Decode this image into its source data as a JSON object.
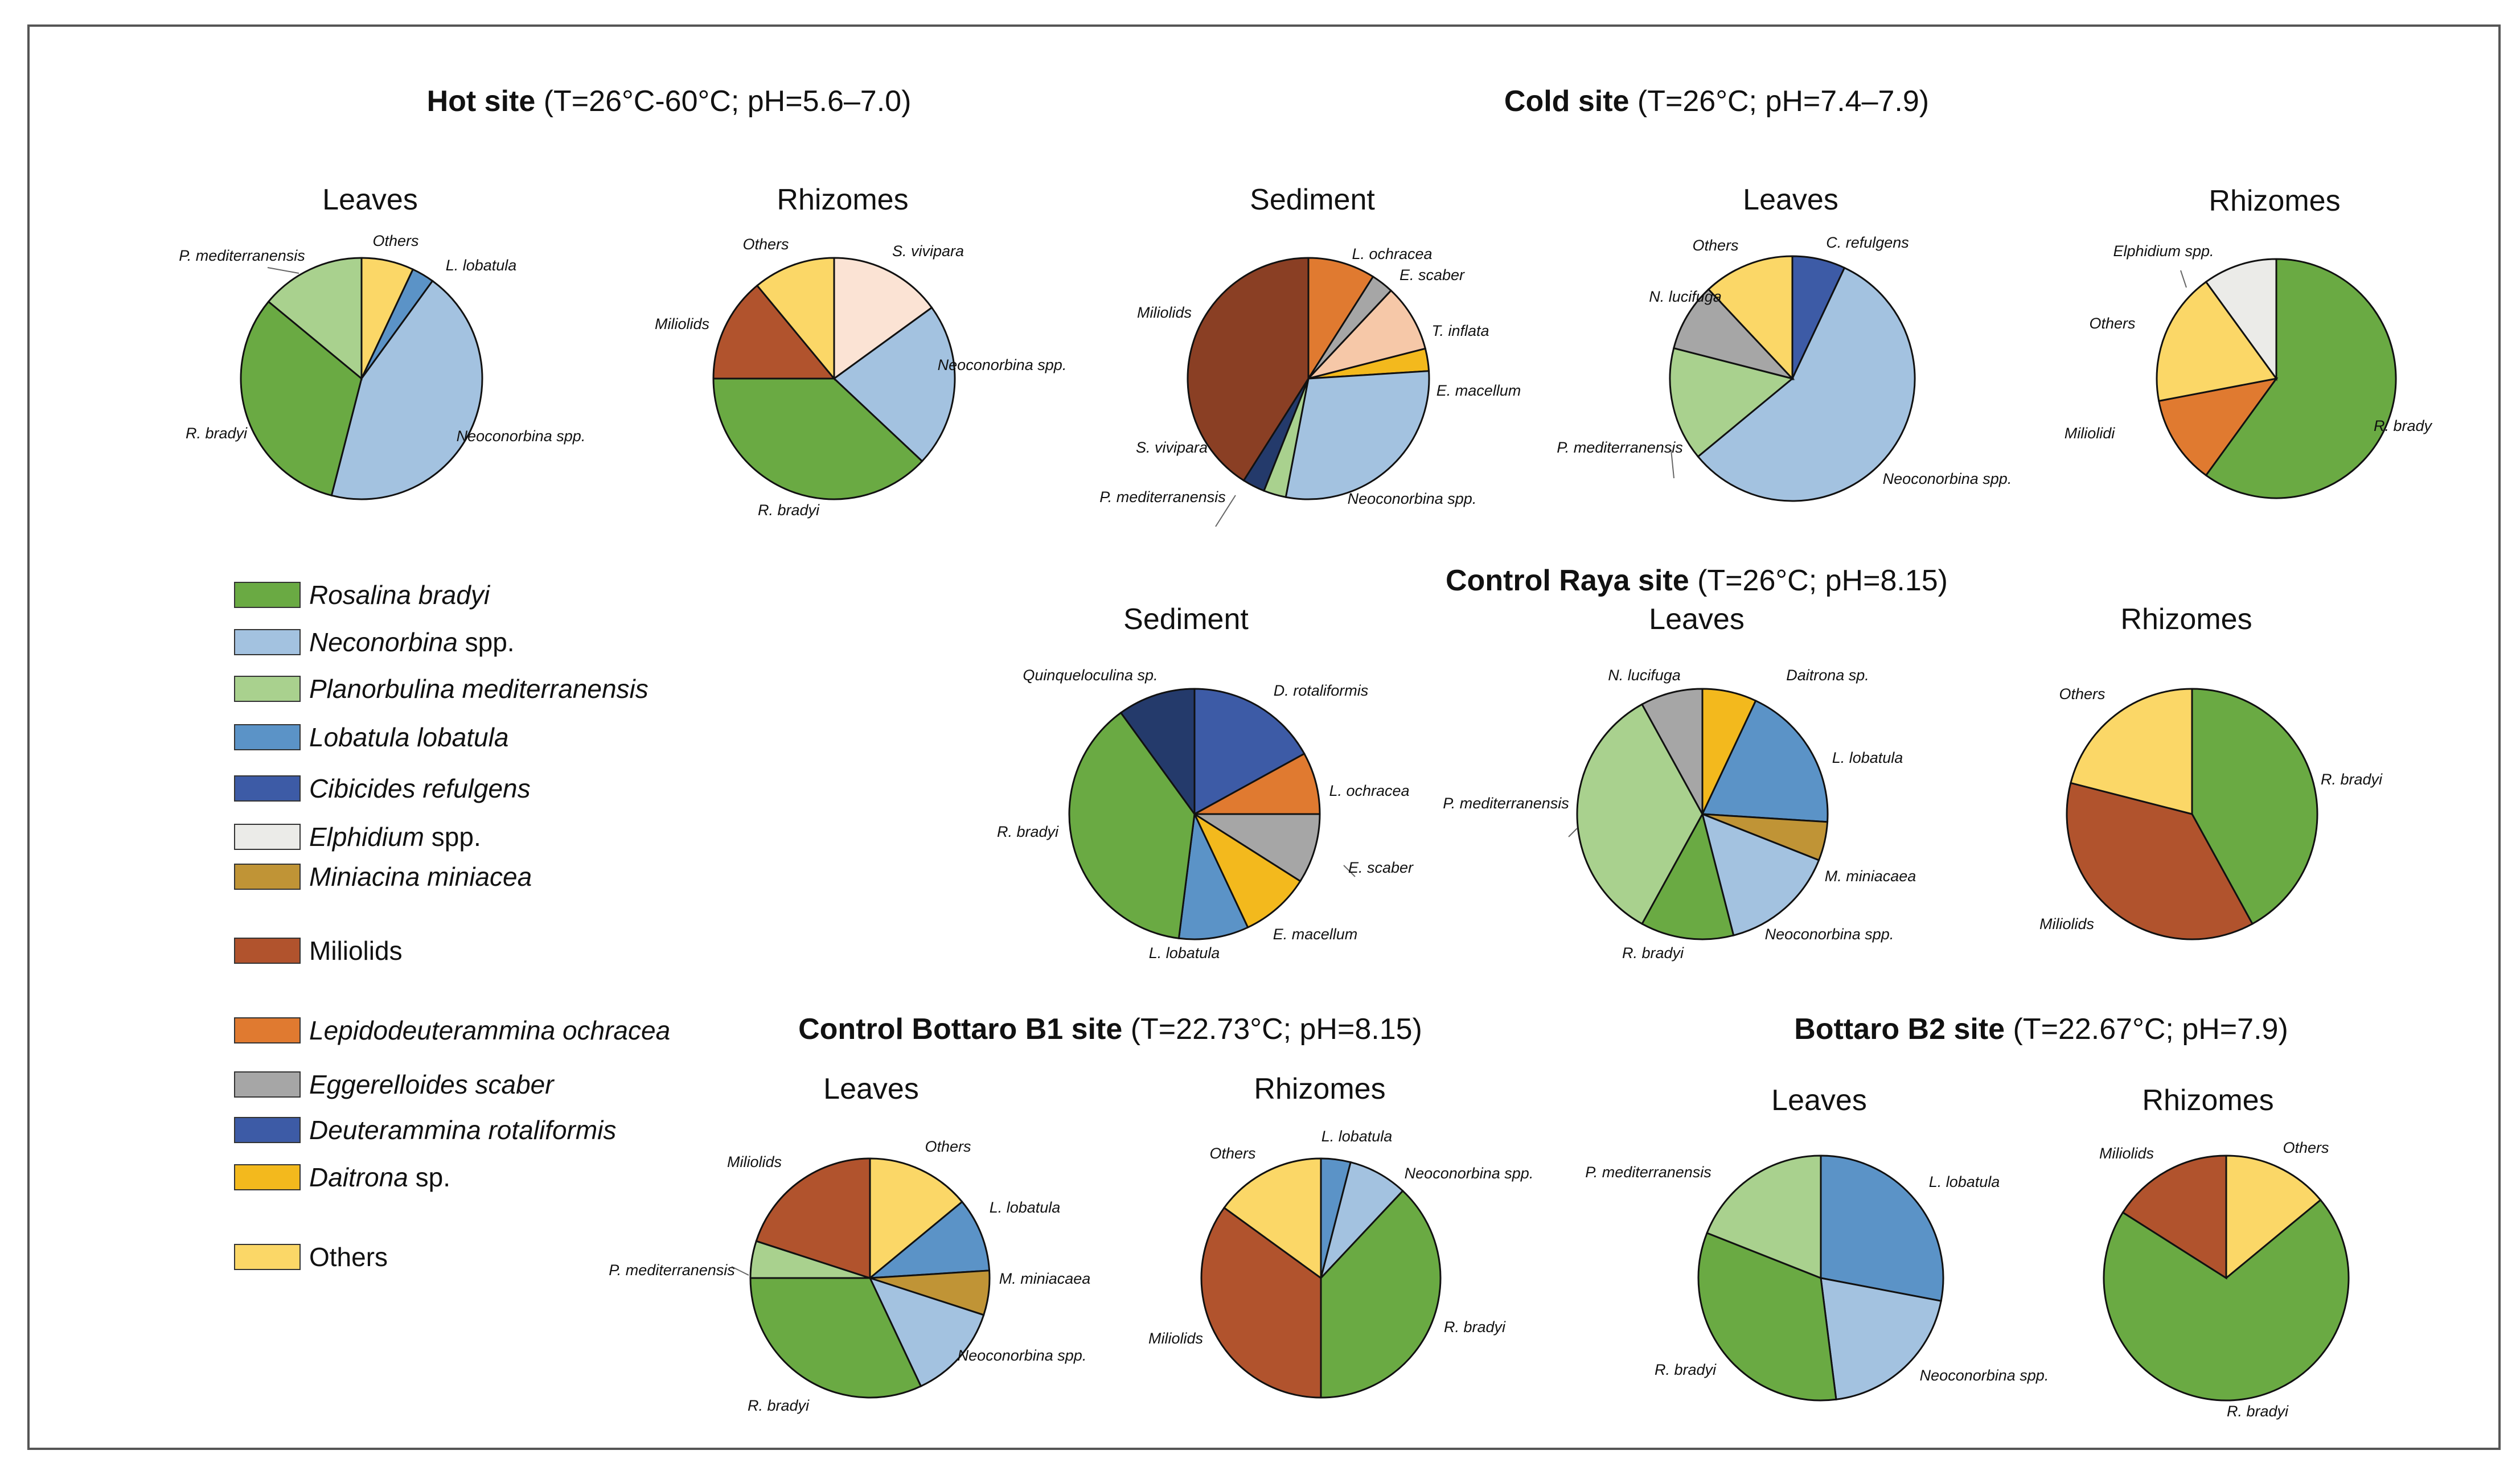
{
  "colors": {
    "Rosalina bradyi": "#6aaa43",
    "Neconorbina spp.": "#a3c2e0",
    "Planorbulina mediterranensis": "#a9d18e",
    "Lobatula lobatula": "#5b93c7",
    "Cibicides refulgens": "#3d5ba6",
    "Elphidium spp.": "#ebebe8",
    "Miniacina miniacea": "#c09436",
    "Miliolids": "#b1532d",
    "Lepidodeuterammina ochracea": "#e07a30",
    "Eggerelloides scaber": "#a6a6a6",
    "Deuterammina rotaliformis": "#3d5ba6",
    "Daitrona sp.": "#f3b91d",
    "Others": "#fbd767",
    "Sediment Miliolids": "#8a3f24",
    "Sediment Neoconorbina": "#a3c2e0",
    "T. inflata": "#f6c8a8",
    "S. vivipara": "#fbe3d4",
    "Quinqueloculina sp.": "#243a6b",
    "Sediment S. vivipara": "#243a6b"
  },
  "legend": [
    {
      "italic": "Rosalina bradyi",
      "plain": "",
      "color_key": "Rosalina bradyi"
    },
    {
      "italic": "Neconorbina",
      "plain": " spp.",
      "color_key": "Neconorbina spp."
    },
    {
      "italic": "Planorbulina mediterranensis",
      "plain": "",
      "color_key": "Planorbulina mediterranensis"
    },
    {
      "italic": "Lobatula lobatula",
      "plain": "",
      "color_key": "Lobatula lobatula"
    },
    {
      "italic": "Cibicides refulgens",
      "plain": "",
      "color_key": "Cibicides refulgens"
    },
    {
      "italic": "Elphidium",
      "plain": " spp.",
      "color_key": "Elphidium spp."
    },
    {
      "italic": "Miniacina miniacea",
      "plain": "",
      "color_key": "Miniacina miniacea"
    },
    {
      "italic": "",
      "plain": "Miliolids",
      "color_key": "Miliolids"
    },
    {
      "italic": "Lepidodeuterammina ochracea",
      "plain": "",
      "color_key": "Lepidodeuterammina ochracea"
    },
    {
      "italic": "Eggerelloides scaber",
      "plain": "",
      "color_key": "Eggerelloides scaber"
    },
    {
      "italic": "Deuterammina rotaliformis",
      "plain": "",
      "color_key": "Deuterammina rotaliformis"
    },
    {
      "italic": "Daitrona",
      "plain": " sp.",
      "color_key": "Daitrona sp."
    },
    {
      "italic": "",
      "plain": "Others",
      "color_key": "Others"
    }
  ],
  "site_titles": [
    {
      "bold": "Hot site",
      "rest": " (T=26°C-60°C; pH=5.6–7.0)"
    },
    {
      "bold": "Cold site",
      "rest": " (T=26°C; pH=7.4–7.9)"
    },
    {
      "bold": "Control Raya site",
      "rest": " (T=26°C; pH=8.15)"
    },
    {
      "bold": "Control Bottaro B1 site",
      "rest": " (T=22.73°C; pH=8.15)"
    },
    {
      "bold": "Bottaro B2 site",
      "rest": " (T=22.67°C; pH=7.9)"
    }
  ],
  "chart_data": [
    {
      "type": "pie",
      "site": "Hot site",
      "title": "Leaves",
      "slices": [
        {
          "label": "Others",
          "value": 7,
          "color_key": "Others"
        },
        {
          "label": "L. lobatula",
          "value": 3,
          "color_key": "Lobatula lobatula"
        },
        {
          "label": "Neoconorbina spp.",
          "value": 44,
          "color_key": "Neconorbina spp."
        },
        {
          "label": "R. bradyi",
          "value": 32,
          "color_key": "Rosalina bradyi"
        },
        {
          "label": "P. mediterranensis",
          "value": 14,
          "color_key": "Planorbulina mediterranensis"
        }
      ]
    },
    {
      "type": "pie",
      "site": "Hot site",
      "title": "Rhizomes",
      "slices": [
        {
          "label": "S. vivipara",
          "value": 15,
          "color_key": "S. vivipara"
        },
        {
          "label": "Neoconorbina spp.",
          "value": 22,
          "color_key": "Neconorbina spp."
        },
        {
          "label": "R. bradyi",
          "value": 38,
          "color_key": "Rosalina bradyi"
        },
        {
          "label": "Miliolids",
          "value": 14,
          "color_key": "Miliolids"
        },
        {
          "label": "Others",
          "value": 11,
          "color_key": "Others"
        }
      ]
    },
    {
      "type": "pie",
      "site": "Cold site",
      "title": "Sediment",
      "slices": [
        {
          "label": "L. ochracea",
          "value": 9,
          "color_key": "Lepidodeuterammina ochracea"
        },
        {
          "label": "E. scaber",
          "value": 3,
          "color_key": "Eggerelloides scaber"
        },
        {
          "label": "T. inflata",
          "value": 9,
          "color_key": "T. inflata"
        },
        {
          "label": "E. macellum",
          "value": 3,
          "color_key": "Daitrona sp."
        },
        {
          "label": "Neoconorbina spp.",
          "value": 29,
          "color_key": "Sediment Neoconorbina"
        },
        {
          "label": "P. mediterranensis",
          "value": 3,
          "color_key": "Planorbulina mediterranensis"
        },
        {
          "label": "S. vivipara",
          "value": 3,
          "color_key": "Sediment S. vivipara"
        },
        {
          "label": "Miliolids",
          "value": 41,
          "color_key": "Sediment Miliolids"
        }
      ]
    },
    {
      "type": "pie",
      "site": "Cold site",
      "title": "Leaves",
      "slices": [
        {
          "label": "C. refulgens",
          "value": 7,
          "color_key": "Cibicides refulgens"
        },
        {
          "label": "Neoconorbina spp.",
          "value": 57,
          "color_key": "Neconorbina spp."
        },
        {
          "label": "P. mediterranensis",
          "value": 15,
          "color_key": "Planorbulina mediterranensis"
        },
        {
          "label": "N. lucifuga",
          "value": 9,
          "color_key": "Eggerelloides scaber"
        },
        {
          "label": "Others",
          "value": 12,
          "color_key": "Others"
        }
      ]
    },
    {
      "type": "pie",
      "site": "Cold site",
      "title": "Rhizomes",
      "slices": [
        {
          "label": "R. brady",
          "value": 60,
          "color_key": "Rosalina bradyi"
        },
        {
          "label": "Miliolidi",
          "value": 12,
          "color_key": "Lepidodeuterammina ochracea"
        },
        {
          "label": "Others",
          "value": 18,
          "color_key": "Others"
        },
        {
          "label": "Elphidium spp.",
          "value": 10,
          "color_key": "Elphidium spp."
        }
      ]
    },
    {
      "type": "pie",
      "site": "Control Raya site",
      "title": "Sediment",
      "slices": [
        {
          "label": "D. rotaliformis",
          "value": 17,
          "color_key": "Deuterammina rotaliformis"
        },
        {
          "label": "L. ochracea",
          "value": 8,
          "color_key": "Lepidodeuterammina ochracea"
        },
        {
          "label": "E. scaber",
          "value": 9,
          "color_key": "Eggerelloides scaber"
        },
        {
          "label": "E. macellum",
          "value": 9,
          "color_key": "Daitrona sp."
        },
        {
          "label": "L. lobatula",
          "value": 9,
          "color_key": "Lobatula lobatula"
        },
        {
          "label": "R. bradyi",
          "value": 38,
          "color_key": "Rosalina bradyi"
        },
        {
          "label": "Quinqueloculina sp.",
          "value": 10,
          "color_key": "Quinqueloculina sp."
        }
      ]
    },
    {
      "type": "pie",
      "site": "Control Raya site",
      "title": "Leaves",
      "slices": [
        {
          "label": "Daitrona sp.",
          "value": 7,
          "color_key": "Daitrona sp."
        },
        {
          "label": "L. lobatula",
          "value": 19,
          "color_key": "Lobatula lobatula"
        },
        {
          "label": "M. miniacaea",
          "value": 5,
          "color_key": "Miniacina miniacea"
        },
        {
          "label": "Neoconorbina spp.",
          "value": 15,
          "color_key": "Neconorbina spp."
        },
        {
          "label": "R. bradyi",
          "value": 12,
          "color_key": "Rosalina bradyi"
        },
        {
          "label": "P. mediterranensis",
          "value": 34,
          "color_key": "Planorbulina mediterranensis"
        },
        {
          "label": "N. lucifuga",
          "value": 8,
          "color_key": "Eggerelloides scaber"
        }
      ]
    },
    {
      "type": "pie",
      "site": "Control Raya site",
      "title": "Rhizomes",
      "slices": [
        {
          "label": "R. bradyi",
          "value": 42,
          "color_key": "Rosalina bradyi"
        },
        {
          "label": "Miliolids",
          "value": 37,
          "color_key": "Miliolids"
        },
        {
          "label": "Others",
          "value": 21,
          "color_key": "Others"
        }
      ]
    },
    {
      "type": "pie",
      "site": "Control Bottaro B1 site",
      "title": "Leaves",
      "slices": [
        {
          "label": "Others",
          "value": 14,
          "color_key": "Others"
        },
        {
          "label": "L. lobatula",
          "value": 10,
          "color_key": "Lobatula lobatula"
        },
        {
          "label": "M. miniacaea",
          "value": 6,
          "color_key": "Miniacina miniacea"
        },
        {
          "label": "Neoconorbina spp.",
          "value": 13,
          "color_key": "Neconorbina spp."
        },
        {
          "label": "R. bradyi",
          "value": 32,
          "color_key": "Rosalina bradyi"
        },
        {
          "label": "P. mediterranensis",
          "value": 5,
          "color_key": "Planorbulina mediterranensis"
        },
        {
          "label": "Miliolids",
          "value": 20,
          "color_key": "Miliolids"
        }
      ]
    },
    {
      "type": "pie",
      "site": "Control Bottaro B1 site",
      "title": "Rhizomes",
      "slices": [
        {
          "label": "L. lobatula",
          "value": 4,
          "color_key": "Lobatula lobatula"
        },
        {
          "label": "Neoconorbina spp.",
          "value": 8,
          "color_key": "Neconorbina spp."
        },
        {
          "label": "R. bradyi",
          "value": 38,
          "color_key": "Rosalina bradyi"
        },
        {
          "label": "Miliolids",
          "value": 35,
          "color_key": "Miliolids"
        },
        {
          "label": "Others",
          "value": 15,
          "color_key": "Others"
        }
      ]
    },
    {
      "type": "pie",
      "site": "Bottaro B2 site",
      "title": "Leaves",
      "slices": [
        {
          "label": "L. lobatula",
          "value": 28,
          "color_key": "Lobatula lobatula"
        },
        {
          "label": "Neoconorbina spp.",
          "value": 20,
          "color_key": "Neconorbina spp."
        },
        {
          "label": "R. bradyi",
          "value": 33,
          "color_key": "Rosalina bradyi"
        },
        {
          "label": "P. mediterranensis",
          "value": 19,
          "color_key": "Planorbulina mediterranensis"
        }
      ]
    },
    {
      "type": "pie",
      "site": "Bottaro B2 site",
      "title": "Rhizomes",
      "slices": [
        {
          "label": "Others",
          "value": 14,
          "color_key": "Others"
        },
        {
          "label": "R. bradyi",
          "value": 70,
          "color_key": "Rosalina bradyi"
        },
        {
          "label": "Miliolids",
          "value": 16,
          "color_key": "Miliolids"
        }
      ]
    }
  ]
}
